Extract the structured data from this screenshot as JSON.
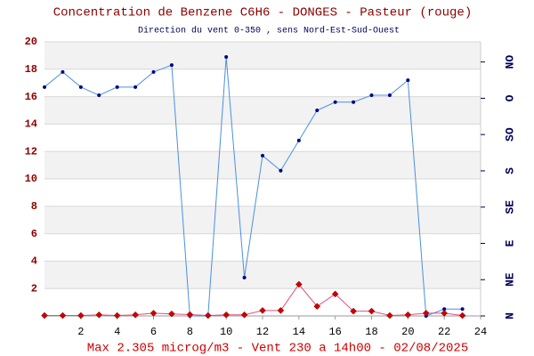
{
  "chart_data": {
    "type": "line",
    "title": "Concentration de Benzene C6H6  -   DONGES - Pasteur (rouge)",
    "subtitle": "Direction du vent 0-350 , sens Nord-Est-Sud-Ouest",
    "footer": "Max 2.305 microg/m3 - Vent 230  a 14h00 - 02/08/2025",
    "x": [
      0,
      1,
      2,
      3,
      4,
      5,
      6,
      7,
      8,
      9,
      10,
      11,
      12,
      13,
      14,
      15,
      16,
      17,
      18,
      19,
      20,
      21,
      22,
      23
    ],
    "xlim": [
      0,
      24
    ],
    "xticks": [
      2,
      4,
      6,
      8,
      10,
      12,
      14,
      16,
      18,
      20,
      22,
      24
    ],
    "ylim": [
      0,
      20
    ],
    "yticks": [
      2,
      4,
      6,
      8,
      10,
      12,
      14,
      16,
      18,
      20
    ],
    "y2lim": [
      0,
      340
    ],
    "y2ticks": [
      {
        "value": 0,
        "label": "N"
      },
      {
        "value": 45,
        "label": "NE"
      },
      {
        "value": 90,
        "label": "E"
      },
      {
        "value": 135,
        "label": "SE"
      },
      {
        "value": 180,
        "label": "S"
      },
      {
        "value": 225,
        "label": "SO"
      },
      {
        "value": 270,
        "label": "O"
      },
      {
        "value": 315,
        "label": "NO"
      }
    ],
    "grid": true,
    "series": [
      {
        "name": "Vent",
        "color": "#4a90e2",
        "marker": "circle",
        "values": [
          16.7,
          17.8,
          16.7,
          16.1,
          16.7,
          16.7,
          17.8,
          18.3,
          0,
          0,
          18.9,
          2.8,
          11.7,
          10.6,
          12.8,
          15.0,
          15.6,
          15.6,
          16.1,
          16.1,
          17.2,
          0,
          0.5,
          0.5
        ]
      },
      {
        "name": "Benzene",
        "color": "#e05080",
        "marker": "diamond",
        "values": [
          0.03,
          0.03,
          0.03,
          0.08,
          0.03,
          0.08,
          0.2,
          0.15,
          0.1,
          0.03,
          0.08,
          0.08,
          0.4,
          0.4,
          2.305,
          0.7,
          1.6,
          0.35,
          0.35,
          0.03,
          0.08,
          0.2,
          0.2,
          0.03
        ]
      }
    ]
  }
}
